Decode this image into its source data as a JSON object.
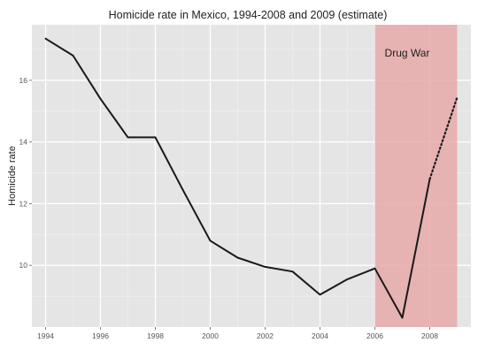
{
  "chart_data": {
    "type": "line",
    "title": "Homicide rate in Mexico, 1994-2008 and 2009 (estimate)",
    "xlabel": "",
    "ylabel": "Homicide rate",
    "xlim": [
      1993.5,
      2009.5
    ],
    "ylim": [
      8.0,
      17.8
    ],
    "x_ticks": [
      "1994",
      "1996",
      "1998",
      "2000",
      "2002",
      "2004",
      "2006",
      "2008"
    ],
    "y_ticks": [
      "10",
      "12",
      "14",
      "16"
    ],
    "grid": true,
    "series": [
      {
        "x": [
          1994,
          1995,
          1996,
          1997,
          1998,
          1999,
          2000,
          2001,
          2002,
          2003,
          2004,
          2005,
          2006,
          2007,
          2008
        ],
        "y": [
          17.35,
          16.8,
          15.4,
          14.15,
          14.15,
          12.45,
          10.8,
          10.25,
          9.95,
          9.8,
          9.05,
          9.55,
          9.9,
          8.3,
          12.8
        ],
        "style": "solid"
      },
      {
        "x": [
          2008,
          2009
        ],
        "y": [
          12.8,
          15.45
        ],
        "style": "dotted"
      }
    ],
    "shaded_region": {
      "x_start": 2006,
      "x_end": 2009,
      "label": "Drug War",
      "color": "#e8a9a9"
    },
    "colors": {
      "panel": "#e5e5e5",
      "grid_major": "#ffffff",
      "grid_minor": "#f0f0f0",
      "line": "#1a1a1a"
    }
  }
}
